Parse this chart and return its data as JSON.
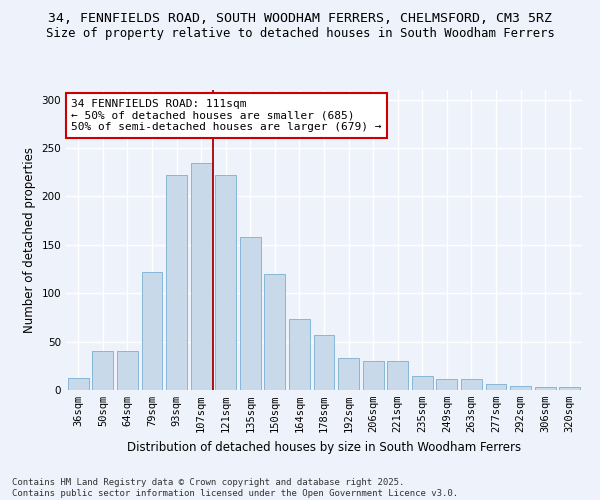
{
  "title_line1": "34, FENNFIELDS ROAD, SOUTH WOODHAM FERRERS, CHELMSFORD, CM3 5RZ",
  "title_line2": "Size of property relative to detached houses in South Woodham Ferrers",
  "xlabel": "Distribution of detached houses by size in South Woodham Ferrers",
  "ylabel": "Number of detached properties",
  "categories": [
    "36sqm",
    "50sqm",
    "64sqm",
    "79sqm",
    "93sqm",
    "107sqm",
    "121sqm",
    "135sqm",
    "150sqm",
    "164sqm",
    "178sqm",
    "192sqm",
    "206sqm",
    "221sqm",
    "235sqm",
    "249sqm",
    "263sqm",
    "277sqm",
    "292sqm",
    "306sqm",
    "320sqm"
  ],
  "values": [
    12,
    40,
    40,
    122,
    222,
    235,
    222,
    158,
    120,
    73,
    57,
    33,
    30,
    30,
    14,
    11,
    11,
    6,
    4,
    3,
    3
  ],
  "bar_color": "#c8d9ea",
  "bar_edge_color": "#7aafd4",
  "vline_x": 5.5,
  "vline_color": "#aa0000",
  "annotation_text": "34 FENNFIELDS ROAD: 111sqm\n← 50% of detached houses are smaller (685)\n50% of semi-detached houses are larger (679) →",
  "annotation_box_facecolor": "#ffffff",
  "annotation_box_edgecolor": "#cc0000",
  "ylim": [
    0,
    310
  ],
  "yticks": [
    0,
    50,
    100,
    150,
    200,
    250,
    300
  ],
  "footnote": "Contains HM Land Registry data © Crown copyright and database right 2025.\nContains public sector information licensed under the Open Government Licence v3.0.",
  "bg_color": "#eef2fa",
  "grid_color": "#ffffff",
  "title_fontsize": 9.5,
  "subtitle_fontsize": 8.8,
  "xlabel_fontsize": 8.5,
  "ylabel_fontsize": 8.5,
  "tick_fontsize": 7.5,
  "annotation_fontsize": 8,
  "footnote_fontsize": 6.5
}
